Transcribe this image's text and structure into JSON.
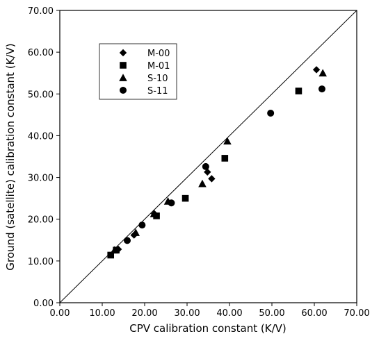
{
  "chart_data": {
    "type": "scatter",
    "title": "",
    "xlabel": "CPV calibration constant (K/V)",
    "ylabel": "Ground (satellite) calibration constant (K/V)",
    "xlim": [
      0,
      70
    ],
    "ylim": [
      0,
      70
    ],
    "x_ticks": [
      "0.00",
      "10.00",
      "20.00",
      "30.00",
      "40.00",
      "50.00",
      "60.00",
      "70.00"
    ],
    "y_ticks": [
      "0.00",
      "10.00",
      "20.00",
      "30.00",
      "40.00",
      "50.00",
      "60.00",
      "70.00"
    ],
    "grid": false,
    "legend_position": "top-left",
    "reference_line": "y = x",
    "series": [
      {
        "name": "M-00",
        "marker": "diamond",
        "points": [
          [
            13.8,
            12.8
          ],
          [
            17.5,
            16.2
          ],
          [
            22.3,
            21.3
          ],
          [
            34.8,
            31.3
          ],
          [
            35.8,
            29.7
          ],
          [
            60.5,
            55.8
          ]
        ]
      },
      {
        "name": "M-01",
        "marker": "square",
        "points": [
          [
            12.0,
            11.4
          ],
          [
            13.3,
            12.6
          ],
          [
            22.8,
            20.8
          ],
          [
            29.6,
            25.0
          ],
          [
            38.9,
            34.6
          ],
          [
            56.3,
            50.7
          ]
        ]
      },
      {
        "name": "S-10",
        "marker": "triangle",
        "points": [
          [
            12.9,
            12.6
          ],
          [
            17.9,
            16.8
          ],
          [
            22.2,
            21.3
          ],
          [
            25.5,
            24.3
          ],
          [
            33.6,
            28.5
          ],
          [
            39.5,
            38.7
          ],
          [
            62.0,
            55.0
          ]
        ]
      },
      {
        "name": "S-11",
        "marker": "circle",
        "points": [
          [
            15.9,
            14.9
          ],
          [
            19.4,
            18.6
          ],
          [
            26.3,
            23.9
          ],
          [
            34.4,
            32.6
          ],
          [
            49.7,
            45.4
          ],
          [
            61.8,
            51.2
          ]
        ]
      }
    ]
  }
}
